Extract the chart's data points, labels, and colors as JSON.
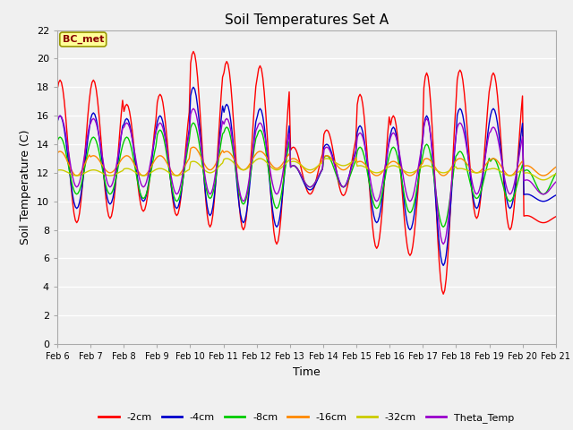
{
  "title": "Soil Temperatures Set A",
  "xlabel": "Time",
  "ylabel": "Soil Temperature (C)",
  "annotation": "BC_met",
  "ylim": [
    0,
    22
  ],
  "yticks": [
    0,
    2,
    4,
    6,
    8,
    10,
    12,
    14,
    16,
    18,
    20,
    22
  ],
  "x_labels": [
    "Feb 6",
    "Feb 7",
    "Feb 8",
    "Feb 9",
    "Feb 10",
    "Feb 11",
    "Feb 12",
    "Feb 13",
    "Feb 14",
    "Feb 15",
    "Feb 16",
    "Feb 17",
    "Feb 18",
    "Feb 19",
    "Feb 20",
    "Feb 21"
  ],
  "fig_bg": "#f0f0f0",
  "plot_bg": "#f0f0f0",
  "grid_color": "#d8d8d8",
  "series_colors": {
    "-2cm": "#ff0000",
    "-4cm": "#0000cc",
    "-8cm": "#00cc00",
    "-16cm": "#ff8800",
    "-32cm": "#cccc00",
    "Theta_Temp": "#9900cc"
  },
  "peaks_2cm": [
    18.5,
    18.5,
    16.8,
    17.5,
    20.5,
    19.8,
    19.5,
    13.8,
    15.0,
    17.5,
    16.0,
    19.0,
    19.2,
    19.0,
    9.0
  ],
  "troughs_2cm": [
    8.5,
    8.8,
    9.3,
    9.0,
    8.2,
    8.0,
    7.0,
    10.5,
    10.4,
    6.7,
    6.2,
    3.5,
    8.8,
    8.0,
    8.5
  ],
  "peaks_4cm": [
    16.0,
    16.2,
    15.8,
    16.0,
    18.0,
    16.8,
    16.5,
    12.5,
    14.0,
    15.3,
    15.2,
    16.0,
    16.5,
    16.5,
    10.5
  ],
  "troughs_4cm": [
    9.5,
    9.8,
    10.0,
    9.5,
    9.0,
    8.5,
    8.2,
    10.8,
    11.0,
    8.5,
    8.0,
    5.5,
    9.5,
    9.5,
    10.0
  ],
  "peaks_8cm": [
    14.5,
    14.5,
    14.5,
    15.0,
    15.5,
    15.2,
    15.0,
    12.5,
    13.2,
    13.8,
    13.8,
    14.0,
    13.5,
    13.0,
    12.2
  ],
  "troughs_8cm": [
    10.5,
    10.5,
    10.2,
    10.0,
    10.2,
    9.8,
    9.5,
    11.0,
    11.0,
    9.5,
    9.2,
    8.2,
    10.2,
    10.0,
    10.5
  ],
  "peaks_16cm": [
    13.5,
    13.2,
    13.2,
    13.2,
    13.8,
    13.5,
    13.5,
    13.0,
    13.2,
    12.8,
    12.8,
    13.0,
    13.0,
    13.0,
    12.5
  ],
  "troughs_16cm": [
    11.8,
    12.0,
    11.8,
    11.8,
    12.2,
    12.2,
    12.3,
    12.0,
    12.2,
    11.8,
    11.8,
    11.8,
    12.0,
    11.8,
    11.8
  ],
  "peaks_32cm": [
    12.2,
    12.2,
    12.3,
    12.3,
    12.8,
    13.0,
    13.0,
    12.8,
    13.0,
    12.5,
    12.5,
    12.5,
    12.3,
    12.3,
    12.0
  ],
  "troughs_32cm": [
    11.8,
    11.8,
    11.8,
    11.8,
    12.0,
    12.2,
    12.2,
    12.2,
    12.5,
    12.0,
    12.0,
    12.0,
    12.0,
    11.8,
    11.5
  ],
  "peaks_theta": [
    16.0,
    15.8,
    15.5,
    15.5,
    16.5,
    15.8,
    15.5,
    12.5,
    13.8,
    14.8,
    14.8,
    15.8,
    15.5,
    15.2,
    11.5
  ],
  "troughs_theta": [
    11.0,
    11.0,
    11.0,
    10.5,
    10.5,
    10.0,
    10.5,
    11.0,
    11.0,
    10.0,
    10.0,
    7.0,
    10.5,
    10.5,
    10.5
  ],
  "n_days": 15,
  "pts_per_day": 24
}
